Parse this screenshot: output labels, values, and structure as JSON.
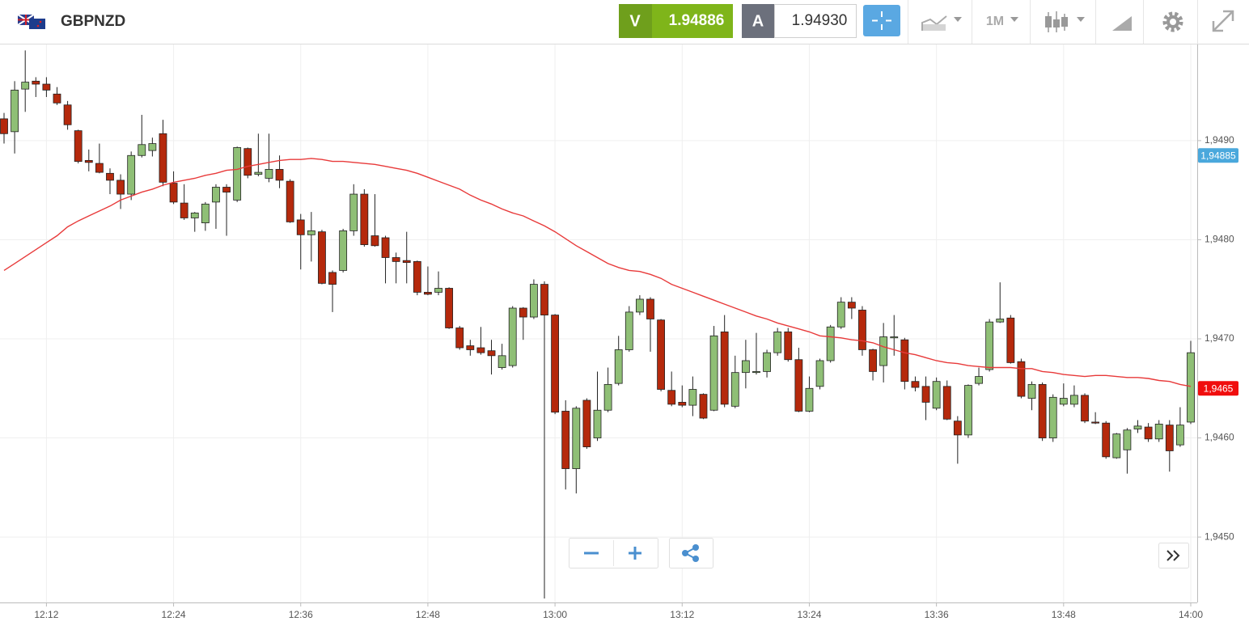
{
  "toolbar": {
    "symbol": "GBPNZD",
    "bid_letter": "V",
    "bid": "1.94886",
    "ask_letter": "A",
    "ask": "1.94930",
    "interval": "1M"
  },
  "chart_data": {
    "type": "candlestick",
    "categories": [
      null,
      null,
      null,
      null,
      "12:12",
      null,
      null,
      null,
      null,
      null,
      null,
      null,
      null,
      null,
      null,
      null,
      "12:24",
      null,
      null,
      null,
      null,
      null,
      null,
      null,
      null,
      null,
      null,
      null,
      "12:36",
      null,
      null,
      null,
      null,
      null,
      null,
      null,
      null,
      null,
      null,
      null,
      "12:48",
      null,
      null,
      null,
      null,
      null,
      null,
      null,
      null,
      null,
      null,
      null,
      "13:00",
      null,
      null,
      null,
      null,
      null,
      null,
      null,
      null,
      null,
      null,
      null,
      "13:12",
      null,
      null,
      null,
      null,
      null,
      null,
      null,
      null,
      null,
      null,
      null,
      "13:24",
      null,
      null,
      null,
      null,
      null,
      null,
      null,
      null,
      null,
      null,
      null,
      "13:36",
      null,
      null,
      null,
      null,
      null,
      null,
      null,
      null,
      null,
      null,
      null,
      "13:48",
      null,
      null,
      null,
      null,
      null,
      null,
      null,
      null,
      null,
      null,
      null,
      "14:00"
    ],
    "open": [
      1.94922,
      1.94909,
      1.94952,
      1.9496,
      1.94957,
      1.94947,
      1.94936,
      1.9491,
      1.9488,
      1.94877,
      1.94867,
      1.9486,
      1.94846,
      1.94885,
      1.9489,
      1.94907,
      1.94857,
      1.94837,
      1.94822,
      1.94817,
      1.94838,
      1.94853,
      1.9484,
      1.94892,
      1.94866,
      1.94862,
      1.94871,
      1.94859,
      1.9482,
      1.94805,
      1.94808,
      1.94767,
      1.94769,
      1.94809,
      1.94846,
      1.94804,
      1.94802,
      1.94782,
      1.94779,
      1.94778,
      1.94747,
      1.94747,
      1.94751,
      1.94711,
      1.94693,
      1.94691,
      1.94688,
      1.94671,
      1.94673,
      1.94731,
      1.94722,
      1.94755,
      1.94724,
      1.94627,
      1.94569,
      1.94638,
      1.946,
      1.94628,
      1.94655,
      1.94689,
      1.94727,
      1.9474,
      1.94719,
      1.94648,
      1.94636,
      1.94633,
      1.94644,
      1.94628,
      1.94707,
      1.94632,
      1.94666,
      1.94666,
      1.94667,
      1.94686,
      1.94707,
      1.94679,
      1.94627,
      1.94652,
      1.94678,
      1.94712,
      1.94737,
      1.94729,
      1.94689,
      1.94673,
      1.94701,
      1.94699,
      1.94657,
      1.94652,
      1.9463,
      1.94652,
      1.94617,
      1.94603,
      1.94655,
      1.94669,
      1.94717,
      1.94721,
      1.94677,
      1.9464,
      1.94654,
      1.946,
      1.94634,
      1.94634,
      1.94643,
      1.94616,
      1.94615,
      1.9458,
      1.94588,
      1.94609,
      1.94611,
      1.94599,
      1.94613,
      1.94593,
      1.94616
    ],
    "high": [
      1.94928,
      1.9496,
      1.94991,
      1.94964,
      1.94964,
      1.94954,
      1.9494,
      1.94911,
      1.94891,
      1.94897,
      1.94872,
      1.94866,
      1.94889,
      1.94926,
      1.94903,
      1.94921,
      1.94869,
      1.94856,
      1.94828,
      1.94838,
      1.94856,
      1.94856,
      1.94894,
      1.94893,
      1.94907,
      1.94907,
      1.94885,
      1.94861,
      1.94826,
      1.94828,
      1.9481,
      1.94769,
      1.94811,
      1.94856,
      1.94851,
      1.94846,
      1.94804,
      1.94787,
      1.94808,
      1.94779,
      1.94773,
      1.94768,
      1.94752,
      1.94713,
      1.94699,
      1.94712,
      1.94699,
      1.94695,
      1.94733,
      1.94732,
      1.9476,
      1.94758,
      1.94725,
      1.94638,
      1.94632,
      1.9464,
      1.94667,
      1.94671,
      1.94703,
      1.94733,
      1.94744,
      1.94742,
      1.9472,
      1.94667,
      1.94653,
      1.94662,
      1.94645,
      1.94713,
      1.94724,
      1.94683,
      1.94699,
      1.94706,
      1.94689,
      1.94711,
      1.94711,
      1.94691,
      1.94662,
      1.9468,
      1.94714,
      1.94742,
      1.94742,
      1.94733,
      1.9469,
      1.94716,
      1.94724,
      1.94701,
      1.94662,
      1.94662,
      1.94661,
      1.94658,
      1.94622,
      1.94654,
      1.94671,
      1.9472,
      1.94757,
      1.94724,
      1.9468,
      1.94657,
      1.94656,
      1.94644,
      1.94655,
      1.94653,
      1.94645,
      1.94626,
      1.94617,
      1.94605,
      1.9461,
      1.94618,
      1.94615,
      1.94618,
      1.94618,
      1.94631,
      1.94698
    ],
    "low": [
      1.94897,
      1.94887,
      1.94929,
      1.94944,
      1.94944,
      1.94936,
      1.94911,
      1.94877,
      1.94869,
      1.94867,
      1.94846,
      1.94831,
      1.9484,
      1.94883,
      1.94884,
      1.94854,
      1.94836,
      1.9482,
      1.94808,
      1.94809,
      1.94811,
      1.94804,
      1.94838,
      1.94862,
      1.94864,
      1.94858,
      1.94852,
      1.94817,
      1.9477,
      1.94778,
      1.94755,
      1.94727,
      1.94767,
      1.94804,
      1.94793,
      1.94793,
      1.94756,
      1.94756,
      1.94756,
      1.94744,
      1.94744,
      1.94744,
      1.9471,
      1.94689,
      1.94683,
      1.94684,
      1.94664,
      1.94669,
      1.94671,
      1.94699,
      1.9472,
      1.94438,
      1.94624,
      1.94548,
      1.94544,
      1.94589,
      1.94597,
      1.94626,
      1.94653,
      1.94687,
      1.94724,
      1.94687,
      1.94647,
      1.94632,
      1.94631,
      1.94622,
      1.94619,
      1.94627,
      1.94631,
      1.9463,
      1.9465,
      1.94664,
      1.94661,
      1.94683,
      1.94677,
      1.94626,
      1.94626,
      1.94649,
      1.94676,
      1.9471,
      1.9472,
      1.94683,
      1.94658,
      1.94656,
      1.94683,
      1.94649,
      1.94647,
      1.94618,
      1.94628,
      1.94618,
      1.94574,
      1.946,
      1.94653,
      1.94667,
      1.94716,
      1.94675,
      1.9464,
      1.94628,
      1.94597,
      1.94596,
      1.94632,
      1.94631,
      1.94615,
      1.94614,
      1.94579,
      1.94579,
      1.94564,
      1.94605,
      1.94596,
      1.94596,
      1.94566,
      1.94591,
      1.94614
    ],
    "close": [
      1.94907,
      1.94951,
      1.94959,
      1.94957,
      1.94951,
      1.94938,
      1.94916,
      1.94879,
      1.94878,
      1.94868,
      1.9486,
      1.94846,
      1.94885,
      1.94896,
      1.94897,
      1.94858,
      1.94838,
      1.94822,
      1.94827,
      1.94836,
      1.94853,
      1.94848,
      1.94893,
      1.94865,
      1.94868,
      1.94871,
      1.9486,
      1.94818,
      1.94805,
      1.94809,
      1.94756,
      1.94755,
      1.94809,
      1.94846,
      1.94795,
      1.94794,
      1.94782,
      1.94778,
      1.94777,
      1.94747,
      1.94745,
      1.94751,
      1.94711,
      1.94691,
      1.94689,
      1.94686,
      1.94683,
      1.94683,
      1.94731,
      1.94722,
      1.94755,
      1.94724,
      1.94626,
      1.94569,
      1.9463,
      1.94591,
      1.94628,
      1.94654,
      1.94689,
      1.94727,
      1.9474,
      1.9472,
      1.94649,
      1.94634,
      1.94633,
      1.94649,
      1.9462,
      1.94703,
      1.94634,
      1.94666,
      1.94678,
      1.94667,
      1.94686,
      1.94707,
      1.94679,
      1.94627,
      1.9465,
      1.94678,
      1.94712,
      1.94737,
      1.94731,
      1.94689,
      1.94667,
      1.94702,
      1.94702,
      1.94657,
      1.94651,
      1.94636,
      1.94657,
      1.94619,
      1.94603,
      1.94653,
      1.94662,
      1.94717,
      1.9472,
      1.94676,
      1.94642,
      1.94654,
      1.946,
      1.94641,
      1.9464,
      1.94643,
      1.94617,
      1.94615,
      1.94581,
      1.94604,
      1.94608,
      1.94612,
      1.94599,
      1.94614,
      1.94587,
      1.94613,
      1.94686
    ],
    "up_color": "#8fbf76",
    "down_color": "#b5290c",
    "overlays": [
      {
        "type": "line",
        "color": "#e83a3a",
        "values": [
          1.94769,
          1.94776,
          1.94783,
          1.9479,
          1.94797,
          1.94804,
          1.94813,
          1.94819,
          1.94824,
          1.94829,
          1.94834,
          1.9484,
          1.94844,
          1.94848,
          1.94851,
          1.94855,
          1.94858,
          1.9486,
          1.94862,
          1.94865,
          1.94867,
          1.9487,
          1.94871,
          1.94874,
          1.94876,
          1.94878,
          1.9488,
          1.94881,
          1.94881,
          1.94882,
          1.94881,
          1.94879,
          1.94879,
          1.94878,
          1.94877,
          1.94876,
          1.94874,
          1.94872,
          1.9487,
          1.94867,
          1.94863,
          1.94859,
          1.94855,
          1.94851,
          1.94845,
          1.9484,
          1.94836,
          1.94831,
          1.94827,
          1.94824,
          1.94819,
          1.94814,
          1.94808,
          1.94801,
          1.94794,
          1.94788,
          1.94782,
          1.94776,
          1.94772,
          1.94769,
          1.94768,
          1.94765,
          1.94761,
          1.94755,
          1.94751,
          1.94747,
          1.94743,
          1.94739,
          1.94735,
          1.94731,
          1.94727,
          1.94723,
          1.9472,
          1.94716,
          1.94713,
          1.9471,
          1.94707,
          1.94703,
          1.94702,
          1.94701,
          1.94699,
          1.94698,
          1.94696,
          1.94692,
          1.94689,
          1.94686,
          1.94684,
          1.94681,
          1.94678,
          1.94676,
          1.94675,
          1.94673,
          1.94672,
          1.94671,
          1.94671,
          1.94671,
          1.9467,
          1.9467,
          1.94667,
          1.94666,
          1.94664,
          1.94663,
          1.94662,
          1.94663,
          1.94663,
          1.94662,
          1.94661,
          1.94661,
          1.9466,
          1.94658,
          1.94657,
          1.94654,
          1.94652
        ]
      }
    ],
    "ylim": [
      1.94434,
      1.94997
    ],
    "yticks": [
      {
        "value": 1.945,
        "label": "1,9450"
      },
      {
        "value": 1.946,
        "label": "1,9460"
      },
      {
        "value": 1.947,
        "label": "1,9470"
      },
      {
        "value": 1.948,
        "label": "1,9480"
      },
      {
        "value": 1.949,
        "label": "1,9490"
      }
    ],
    "grid": true,
    "price_labels": [
      {
        "value": 1.94885,
        "label": "1,94885",
        "color": "#4aa8dc"
      },
      {
        "value": 1.9465,
        "label": "1,9465",
        "color": "#f00d0d"
      }
    ]
  }
}
